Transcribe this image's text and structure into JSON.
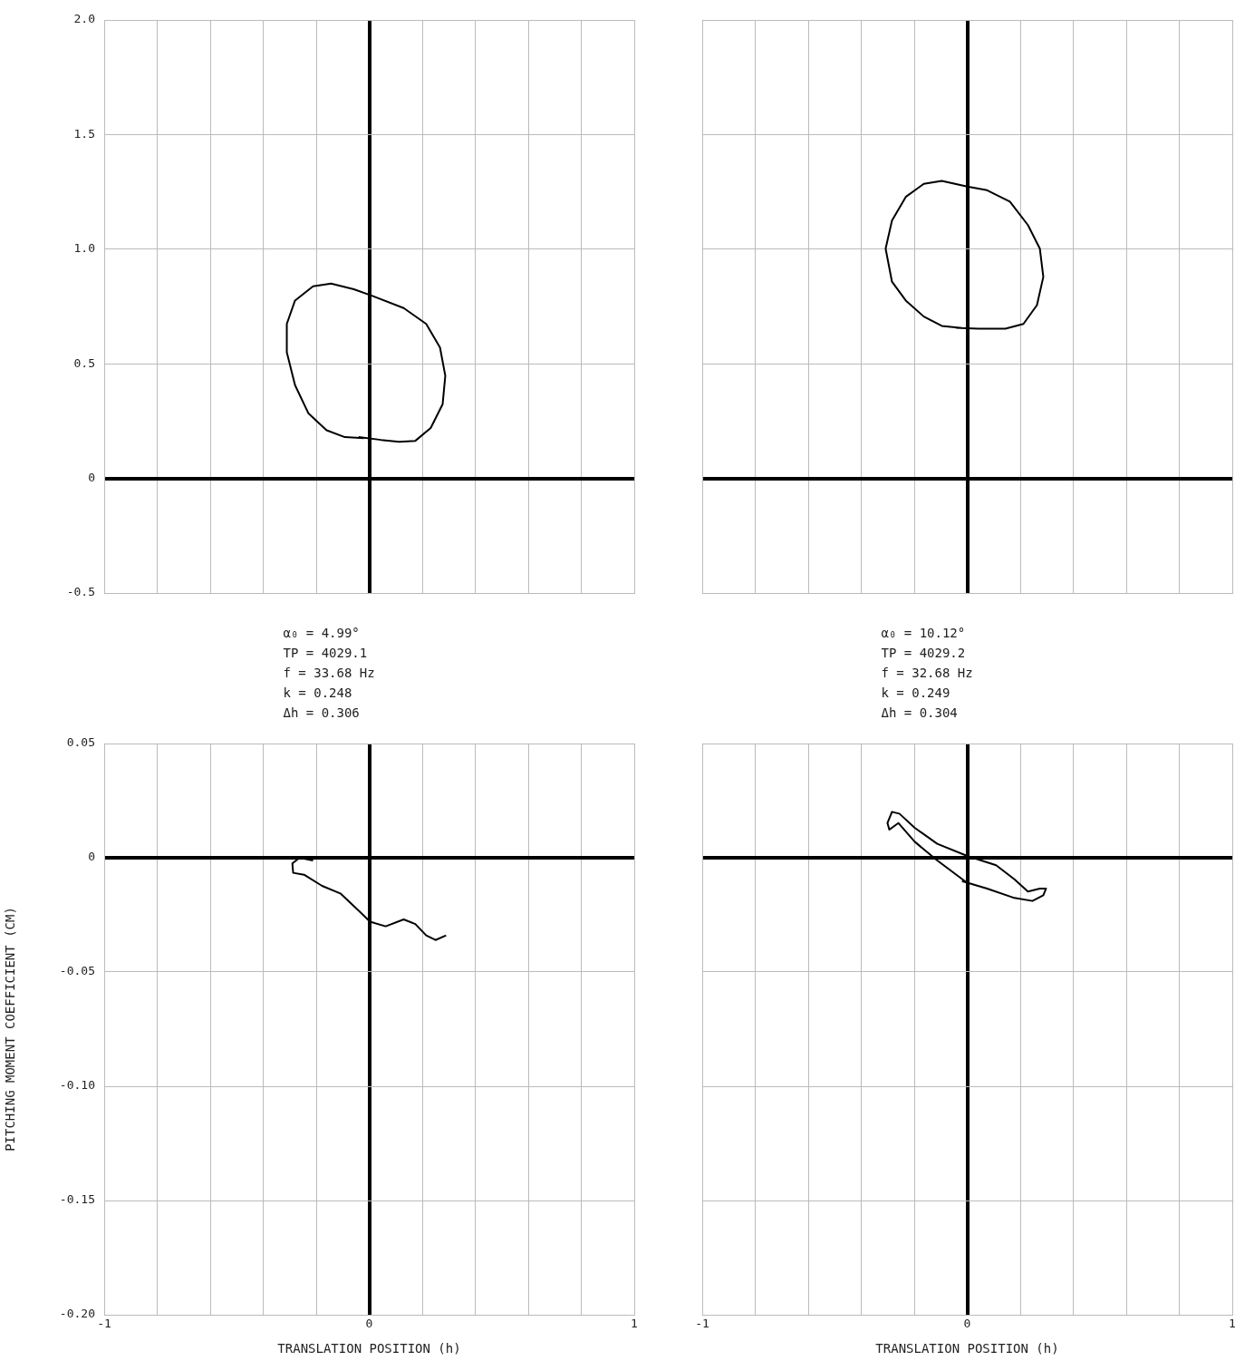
{
  "chart_data": [
    {
      "type": "line",
      "xlim": [
        -1,
        1
      ],
      "ylim": [
        -0.5,
        2.0
      ],
      "xticks": [
        -1,
        {
          "value": -0.8,
          "label": null
        },
        {
          "value": -0.6,
          "label": null
        },
        {
          "value": -0.4,
          "label": null
        },
        {
          "value": -0.2,
          "label": null
        },
        0,
        {
          "value": 0.2,
          "label": null
        },
        {
          "value": 0.4,
          "label": null
        },
        {
          "value": 0.6,
          "label": null
        },
        {
          "value": 0.8,
          "label": null
        },
        1
      ],
      "yticks": [
        {
          "value": -0.5,
          "label": "-0.5"
        },
        0,
        0.5,
        {
          "value": 1,
          "label": "1.0"
        },
        1.5,
        {
          "value": 2,
          "label": "2.0"
        }
      ],
      "tick_labels": "y",
      "grid": true,
      "legend": false,
      "marker": "none",
      "line_style": "solid",
      "annotations": [
        "α₀ = 4.99°",
        "TP = 4029.1",
        "f = 33.68 Hz",
        "k = 0.248",
        "Δh = 0.306"
      ],
      "series": [
        {
          "color": "#000000",
          "x": [
            -0.04,
            0.044,
            0.113,
            0.174,
            0.232,
            0.277,
            0.287,
            0.267,
            0.215,
            0.13,
            0.01,
            -0.058,
            -0.144,
            -0.212,
            -0.28,
            -0.311,
            -0.311,
            -0.28,
            -0.229,
            -0.161,
            -0.092,
            -0.02
          ],
          "values": [
            0.18,
            0.168,
            0.16,
            0.164,
            0.22,
            0.324,
            0.448,
            0.571,
            0.674,
            0.743,
            0.797,
            0.825,
            0.85,
            0.838,
            0.776,
            0.674,
            0.55,
            0.407,
            0.283,
            0.21,
            0.18,
            0.175
          ]
        }
      ]
    },
    {
      "type": "line",
      "xlim": [
        -1,
        1
      ],
      "ylim": [
        -0.5,
        2.0
      ],
      "xticks": [
        -1,
        {
          "value": -0.8,
          "label": null
        },
        {
          "value": -0.6,
          "label": null
        },
        {
          "value": -0.4,
          "label": null
        },
        {
          "value": -0.2,
          "label": null
        },
        0,
        {
          "value": 0.2,
          "label": null
        },
        {
          "value": 0.4,
          "label": null
        },
        {
          "value": 0.6,
          "label": null
        },
        {
          "value": 0.8,
          "label": null
        },
        1
      ],
      "yticks": [
        -0.5,
        0,
        0.5,
        1,
        1.5,
        2
      ],
      "tick_labels": false,
      "grid": true,
      "legend": false,
      "marker": "none",
      "line_style": "solid",
      "annotations": [
        "α₀ = 10.12°",
        "TP = 4029.2",
        "f = 32.68 Hz",
        "k = 0.249",
        "Δh = 0.304"
      ],
      "series": [
        {
          "color": "#000000",
          "x": [
            -0.044,
            0.041,
            0.144,
            0.212,
            0.263,
            0.287,
            0.274,
            0.229,
            0.161,
            0.075,
            0,
            -0.096,
            -0.164,
            -0.232,
            -0.284,
            -0.308,
            -0.284,
            -0.232,
            -0.164,
            -0.096,
            -0.02
          ],
          "values": [
            0.657,
            0.653,
            0.653,
            0.674,
            0.756,
            0.879,
            1.002,
            1.105,
            1.207,
            1.257,
            1.273,
            1.298,
            1.285,
            1.228,
            1.125,
            1.002,
            0.858,
            0.776,
            0.706,
            0.665,
            0.656
          ]
        }
      ]
    },
    {
      "type": "line",
      "xlim": [
        -1,
        1
      ],
      "ylim": [
        -0.2,
        0.05
      ],
      "xlabel": "TRANSLATION POSITION (h)",
      "ylabel": "PITCHING MOMENT COEFFICIENT (CM)",
      "xticks": [
        -1,
        {
          "value": -0.8,
          "label": null
        },
        {
          "value": -0.6,
          "label": null
        },
        {
          "value": -0.4,
          "label": null
        },
        {
          "value": -0.2,
          "label": null
        },
        0,
        {
          "value": 0.2,
          "label": null
        },
        {
          "value": 0.4,
          "label": null
        },
        {
          "value": 0.6,
          "label": null
        },
        {
          "value": 0.8,
          "label": null
        },
        1
      ],
      "yticks": [
        {
          "value": -0.2,
          "label": "-0.20"
        },
        -0.15,
        {
          "value": -0.1,
          "label": "-0.10"
        },
        -0.05,
        0,
        0.05
      ],
      "grid": true,
      "legend": false,
      "marker": "none",
      "line_style": "solid",
      "series": [
        {
          "color": "#000000",
          "x": [
            -0.212,
            -0.263,
            -0.29,
            -0.287,
            -0.246,
            -0.178,
            -0.109,
            -0.041,
            0.003,
            0.062,
            0.13,
            0.174,
            0.215,
            0.25,
            0.29
          ],
          "values": [
            -0.0012,
            0,
            -0.0025,
            -0.0066,
            -0.0074,
            -0.0123,
            -0.0156,
            -0.023,
            -0.028,
            -0.03,
            -0.027,
            -0.029,
            -0.034,
            -0.036,
            -0.034
          ]
        }
      ]
    },
    {
      "type": "line",
      "xlim": [
        -1,
        1
      ],
      "ylim": [
        -0.2,
        0.05
      ],
      "xlabel": "TRANSLATION POSITION (h)",
      "xticks": [
        -1,
        {
          "value": -0.8,
          "label": null
        },
        {
          "value": -0.6,
          "label": null
        },
        {
          "value": -0.4,
          "label": null
        },
        {
          "value": -0.2,
          "label": null
        },
        0,
        {
          "value": 0.2,
          "label": null
        },
        {
          "value": 0.4,
          "label": null
        },
        {
          "value": 0.6,
          "label": null
        },
        {
          "value": 0.8,
          "label": null
        },
        1
      ],
      "yticks": [
        -0.2,
        -0.15,
        -0.1,
        -0.05,
        0,
        0.05
      ],
      "tick_labels": "x",
      "grid": true,
      "legend": false,
      "marker": "none",
      "line_style": "solid",
      "series": [
        {
          "color": "#000000",
          "x": [
            -0.02,
            0.075,
            0.178,
            0.246,
            0.287,
            0.297,
            0.274,
            0.229,
            0.178,
            0.109,
            0,
            -0.113,
            -0.198,
            -0.256,
            -0.284,
            -0.301,
            -0.294,
            -0.26,
            -0.198,
            -0.113,
            0.0
          ],
          "values": [
            -0.0102,
            -0.0135,
            -0.0176,
            -0.0189,
            -0.0164,
            -0.0135,
            -0.0135,
            -0.0148,
            -0.0094,
            -0.0033,
            0.0008,
            0.0061,
            0.0131,
            0.0193,
            0.0201,
            0.0152,
            0.0123,
            0.0152,
            0.007,
            -0.0012,
            -0.011
          ]
        }
      ]
    }
  ]
}
